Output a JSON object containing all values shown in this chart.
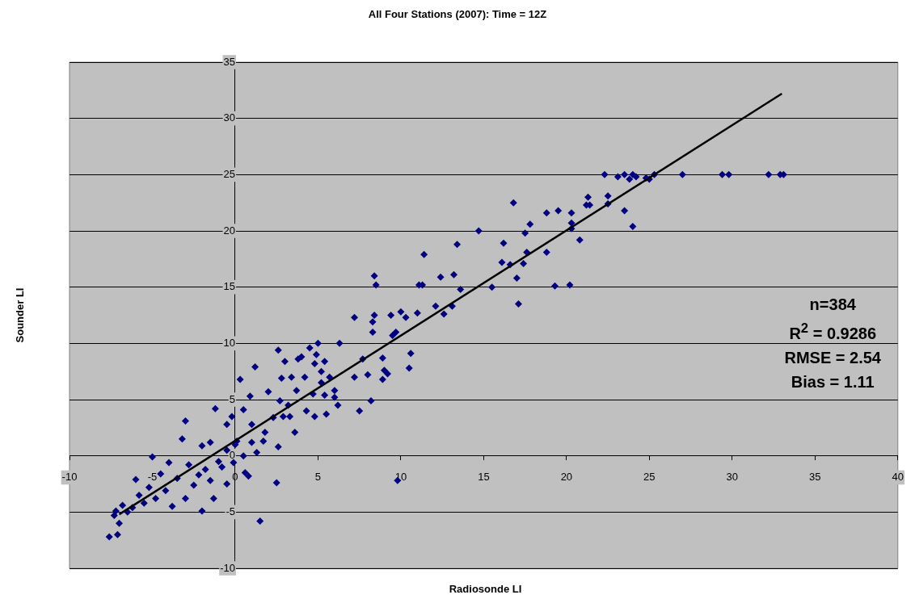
{
  "chart_data": {
    "type": "scatter",
    "title": "All Four Stations (2007): Time = 12Z",
    "xlabel": "Radiosonde LI",
    "ylabel": "Sounder LI",
    "xlim": [
      -10,
      40
    ],
    "xticks": [
      -10,
      -5,
      0,
      5,
      10,
      15,
      20,
      25,
      30,
      35,
      40
    ],
    "ylim": [
      -10,
      35
    ],
    "yticks": [
      -10,
      -5,
      0,
      5,
      10,
      15,
      20,
      25,
      30,
      35
    ],
    "grid": "y",
    "marker": "diamond",
    "legend": false,
    "annotations": [
      "n=384",
      "R$^{2}$ = 0.9286",
      "RMSE = 2.54",
      "Bias = 1.11"
    ],
    "series": [
      {
        "type": "scatter",
        "color": "#000080",
        "x": [
          22.3,
          23.1,
          23.5,
          23.8,
          24,
          24.2,
          25.3,
          25,
          24.8,
          27,
          29.4,
          29.8,
          32.2,
          32.9,
          33.1,
          22.5,
          22.5,
          21.3,
          21.2,
          21.4,
          20.3,
          20.3,
          20.8,
          23.5,
          24,
          20.3,
          19.5,
          18.8,
          18.8,
          17.8,
          17.5,
          17.6,
          17.4,
          17,
          17.1,
          16.8,
          16.2,
          16.1,
          16.6,
          19.3,
          20.2,
          15.5,
          14.7,
          13.6,
          13.4,
          13.2,
          13.1,
          12.6,
          12.4,
          12.1,
          11.4,
          11.3,
          11.1,
          11,
          10.6,
          10.5,
          10.3,
          10,
          9.7,
          9.5,
          9.4,
          9.2,
          9,
          8.9,
          8.9,
          8.5,
          8.4,
          8.4,
          8.3,
          8.3,
          8.2,
          8,
          7.7,
          7.5,
          7.2,
          7.2,
          6.3,
          6.2,
          6,
          5.7,
          5.5,
          5.4,
          5.2,
          5,
          4.9,
          4.8,
          4.7,
          4.5,
          4.3,
          4.2,
          4,
          3.8,
          3.7,
          3.6,
          3.4,
          3.2,
          3,
          2.9,
          2.8,
          2.7,
          2.6,
          2.6,
          2.5,
          2.3,
          2,
          1.8,
          1.7,
          1.5,
          1.2,
          1,
          0.9,
          0.5,
          0.3,
          0.1,
          -0.2,
          -0.5,
          -1.2,
          -1.5,
          -2,
          -3,
          -3.2,
          -4,
          -4.5,
          -5,
          -5.2,
          -5.5,
          -6,
          -6.2,
          -6.8,
          -7,
          -7.1,
          -7.3,
          -7.6,
          -7.2,
          -2,
          -1.3,
          -0.1,
          -0.5,
          9.8,
          -3,
          -2.5,
          -1.8,
          -1,
          -0.5,
          0,
          0.5,
          -3.5,
          -4.2,
          -5.8,
          -3.8,
          -2.2,
          -1.5,
          -0.8,
          1,
          -2.8,
          -4.8,
          -6.5,
          0.8,
          1.3,
          4.8,
          6,
          3.3,
          5.4,
          5.2,
          0.6
        ],
        "values": [
          25,
          24.8,
          25,
          24.6,
          25,
          24.8,
          25,
          24.6,
          24.7,
          25,
          25,
          25,
          25,
          25,
          25,
          22.4,
          23.1,
          23,
          22.3,
          22.3,
          21.6,
          20.7,
          19.2,
          21.8,
          20.4,
          20.2,
          21.8,
          21.6,
          18.1,
          20.6,
          19.8,
          18.1,
          17.1,
          15.8,
          13.5,
          22.5,
          18.9,
          17.2,
          17,
          15.1,
          15.2,
          15,
          20,
          14.8,
          18.8,
          16.1,
          13.3,
          12.6,
          15.9,
          13.3,
          17.9,
          15.2,
          15.2,
          12.7,
          9.1,
          7.8,
          12.3,
          12.8,
          11,
          10.7,
          12.5,
          7.3,
          7.6,
          8.7,
          6.8,
          15.2,
          16,
          12.5,
          11.9,
          11,
          4.9,
          7.2,
          8.6,
          4,
          12.3,
          7,
          10,
          4.5,
          5.8,
          7,
          3.7,
          5.4,
          6.5,
          10,
          9,
          8.2,
          5.5,
          9.6,
          4,
          7,
          8.8,
          8.6,
          5.8,
          2.1,
          7,
          4.5,
          8.4,
          3.5,
          6.9,
          4.9,
          9.4,
          0.8,
          -2.4,
          3.4,
          5.7,
          2.1,
          1.3,
          -5.8,
          7.9,
          2.8,
          5.3,
          4.1,
          6.8,
          1.3,
          3.5,
          2.8,
          4.2,
          1.2,
          0.9,
          3.1,
          1.5,
          -0.6,
          -1.6,
          -0.1,
          -2.8,
          -4.2,
          -2.1,
          -4.6,
          -4.4,
          -6,
          -7,
          -5.3,
          -7.2,
          -4.9,
          -4.9,
          -3.8,
          -0.6,
          -2.5,
          -2.2,
          -3.8,
          -2.6,
          -1.2,
          -0.5,
          0.5,
          1,
          0,
          -2,
          -3.1,
          -3.5,
          -4.5,
          -1.7,
          -2.2,
          -1,
          1.2,
          -0.8,
          -3.8,
          -5,
          -1.8,
          0.3,
          3.5,
          5.2,
          3.5,
          8.4,
          7.5,
          -1.5
        ]
      },
      {
        "type": "line",
        "marker": "none",
        "color": "#000000",
        "x": [
          -7,
          33
        ],
        "values": [
          -5.2,
          32.2
        ]
      }
    ]
  }
}
